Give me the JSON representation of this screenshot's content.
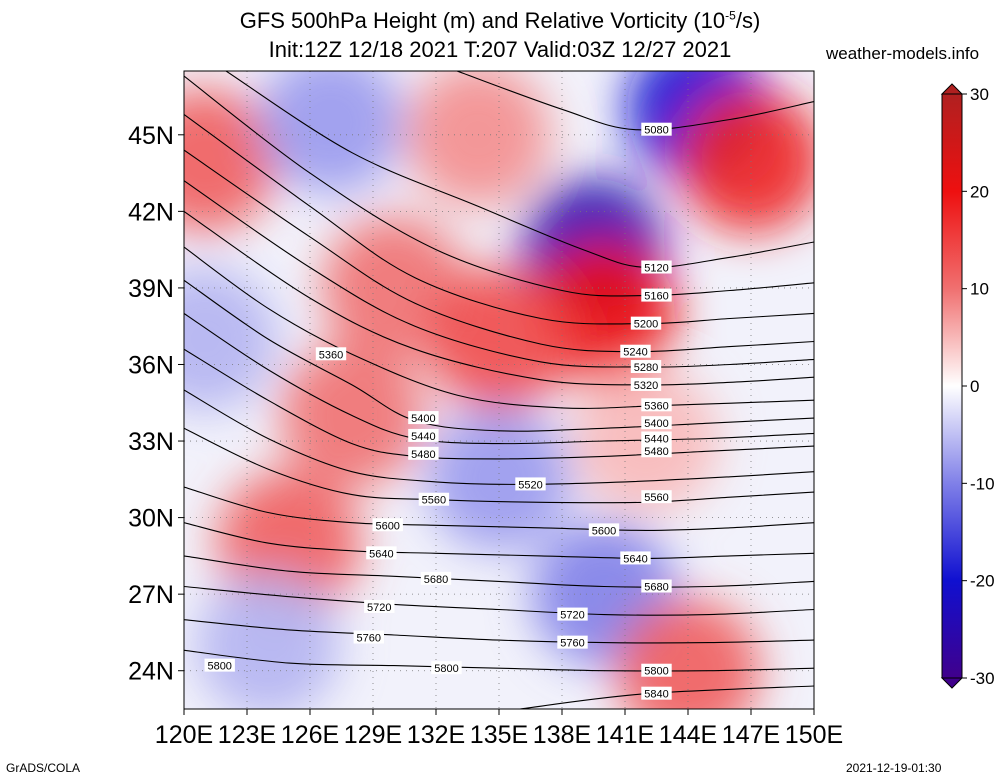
{
  "header": {
    "title_line1_prefix": "GFS 500hPa Height (m) and Relative Vorticity (10",
    "title_line1_exp": "-5",
    "title_line1_suffix": "/s)",
    "title_line2": "Init:12Z 12/18 2021 T:207 Valid:03Z 12/27 2021",
    "brand": "weather-models.info"
  },
  "footer": {
    "left": "GrADS/COLA",
    "right": "2021-12-19-01:30"
  },
  "chart_data": {
    "type": "heatmap",
    "title": "GFS 500hPa Height (m) and Relative Vorticity (10^-5/s)",
    "xlim": [
      120,
      150
    ],
    "ylim": [
      22.5,
      47.5
    ],
    "x_ticks": [
      {
        "value": 120,
        "label": "120E"
      },
      {
        "value": 123,
        "label": "123E"
      },
      {
        "value": 126,
        "label": "126E"
      },
      {
        "value": 129,
        "label": "129E"
      },
      {
        "value": 132,
        "label": "132E"
      },
      {
        "value": 135,
        "label": "135E"
      },
      {
        "value": 138,
        "label": "138E"
      },
      {
        "value": 141,
        "label": "141E"
      },
      {
        "value": 144,
        "label": "144E"
      },
      {
        "value": 147,
        "label": "147E"
      },
      {
        "value": 150,
        "label": "150E"
      }
    ],
    "y_ticks": [
      {
        "value": 24,
        "label": "24N"
      },
      {
        "value": 27,
        "label": "27N"
      },
      {
        "value": 30,
        "label": "30N"
      },
      {
        "value": 33,
        "label": "33N"
      },
      {
        "value": 36,
        "label": "36N"
      },
      {
        "value": 39,
        "label": "39N"
      },
      {
        "value": 42,
        "label": "42N"
      },
      {
        "value": 45,
        "label": "45N"
      }
    ],
    "grid": true,
    "colorbar": {
      "min": -30,
      "max": 30,
      "ticks": [
        {
          "value": 30,
          "label": "30"
        },
        {
          "value": 20,
          "label": "20"
        },
        {
          "value": 10,
          "label": "10"
        },
        {
          "value": 0,
          "label": "0"
        },
        {
          "value": -10,
          "label": "-10"
        },
        {
          "value": -20,
          "label": "-20"
        },
        {
          "value": -30,
          "label": "-30"
        }
      ],
      "stops": [
        {
          "value": 30,
          "color": "#b02020"
        },
        {
          "value": 20,
          "color": "#ee1010"
        },
        {
          "value": 10,
          "color": "#f07070"
        },
        {
          "value": 0,
          "color": "#ffffff"
        },
        {
          "value": -10,
          "color": "#8080e8"
        },
        {
          "value": -20,
          "color": "#1010d0"
        },
        {
          "value": -30,
          "color": "#40008c"
        }
      ]
    },
    "vorticity_regions": [
      {
        "lon": 121,
        "lat": 44,
        "value": 12
      },
      {
        "lon": 127,
        "lat": 45.5,
        "value": -8
      },
      {
        "lon": 134,
        "lat": 45,
        "value": 8
      },
      {
        "lon": 144.5,
        "lat": 46,
        "value": -20
      },
      {
        "lon": 147,
        "lat": 44,
        "value": 18
      },
      {
        "lon": 139.5,
        "lat": 40.5,
        "value": -25
      },
      {
        "lon": 140,
        "lat": 38,
        "value": 20
      },
      {
        "lon": 130,
        "lat": 39,
        "value": 10
      },
      {
        "lon": 135,
        "lat": 37,
        "value": 14
      },
      {
        "lon": 121,
        "lat": 37,
        "value": -6
      },
      {
        "lon": 128,
        "lat": 34,
        "value": 10
      },
      {
        "lon": 142,
        "lat": 33,
        "value": 5
      },
      {
        "lon": 135,
        "lat": 31.5,
        "value": -8
      },
      {
        "lon": 125,
        "lat": 29,
        "value": 12
      },
      {
        "lon": 140,
        "lat": 27,
        "value": -10
      },
      {
        "lon": 124,
        "lat": 25,
        "value": -6
      },
      {
        "lon": 144,
        "lat": 24,
        "value": 12
      }
    ],
    "height_contours": [
      {
        "label": "5080",
        "points": [
          [
            133,
            47.5
          ],
          [
            138,
            46
          ],
          [
            141.5,
            45.2
          ],
          [
            146,
            45.6
          ],
          [
            150,
            46.3
          ]
        ],
        "label_at": [
          142.5,
          45.2
        ]
      },
      {
        "label": "5120",
        "points": [
          [
            122,
            47.5
          ],
          [
            128,
            44.3
          ],
          [
            134,
            42.2
          ],
          [
            139,
            40.5
          ],
          [
            142,
            39.8
          ],
          [
            146,
            40.2
          ],
          [
            150,
            40.8
          ]
        ],
        "label_at": [
          142.5,
          39.8
        ]
      },
      {
        "label": "5160",
        "points": [
          [
            120,
            47.3
          ],
          [
            126,
            43.5
          ],
          [
            132,
            40.5
          ],
          [
            138,
            38.9
          ],
          [
            142,
            38.7
          ],
          [
            146,
            38.9
          ],
          [
            150,
            39.2
          ]
        ],
        "label_at": [
          142.5,
          38.7
        ]
      },
      {
        "label": "5200",
        "points": [
          [
            120,
            45.8
          ],
          [
            126,
            42.2
          ],
          [
            131,
            39.4
          ],
          [
            137,
            37.8
          ],
          [
            142,
            37.6
          ],
          [
            146,
            37.8
          ],
          [
            150,
            38.0
          ]
        ],
        "label_at": [
          142,
          37.6
        ]
      },
      {
        "label": "5240",
        "points": [
          [
            120,
            44.4
          ],
          [
            126,
            41
          ],
          [
            131,
            38.4
          ],
          [
            137,
            36.8
          ],
          [
            141.5,
            36.5
          ],
          [
            146,
            36.7
          ],
          [
            150,
            36.9
          ]
        ],
        "label_at": [
          141.5,
          36.5
        ]
      },
      {
        "label": "5280",
        "points": [
          [
            120,
            43.2
          ],
          [
            126,
            39.8
          ],
          [
            131,
            37.5
          ],
          [
            137,
            36.1
          ],
          [
            142,
            35.9
          ],
          [
            146,
            36.0
          ],
          [
            150,
            36.2
          ]
        ],
        "label_at": [
          142,
          35.9
        ]
      },
      {
        "label": "5320",
        "points": [
          [
            120,
            42
          ],
          [
            126,
            38.6
          ],
          [
            131,
            36.6
          ],
          [
            137,
            35.4
          ],
          [
            142,
            35.2
          ],
          [
            146,
            35.3
          ],
          [
            150,
            35.5
          ]
        ],
        "label_at": [
          142,
          35.2
        ]
      },
      {
        "label": "5360",
        "points": [
          [
            120,
            40.6
          ],
          [
            124,
            38.2
          ],
          [
            128,
            36.4
          ],
          [
            133,
            34.8
          ],
          [
            138,
            34.3
          ],
          [
            143,
            34.4
          ],
          [
            150,
            34.6
          ]
        ],
        "label_at": [
          142.5,
          34.4
        ]
      },
      {
        "label": "5400",
        "points": [
          [
            120,
            39.3
          ],
          [
            124,
            37
          ],
          [
            128,
            35.2
          ],
          [
            131,
            33.8
          ],
          [
            135,
            33.4
          ],
          [
            140,
            33.5
          ],
          [
            145,
            33.7
          ],
          [
            150,
            33.9
          ]
        ],
        "label_at": [
          142.5,
          33.7
        ]
      },
      {
        "label": "5440",
        "points": [
          [
            120,
            38
          ],
          [
            124,
            35.8
          ],
          [
            128,
            34
          ],
          [
            131,
            33.1
          ],
          [
            135,
            32.9
          ],
          [
            140,
            33.0
          ],
          [
            145,
            33.1
          ],
          [
            150,
            33.3
          ]
        ],
        "label_at": [
          142.5,
          33.1
        ]
      },
      {
        "label": "5480",
        "points": [
          [
            120,
            36.6
          ],
          [
            124,
            34.6
          ],
          [
            128,
            32.9
          ],
          [
            131,
            32.4
          ],
          [
            135,
            32.3
          ],
          [
            140,
            32.4
          ],
          [
            145,
            32.6
          ],
          [
            150,
            32.8
          ]
        ],
        "label_at": [
          142.5,
          32.6
        ]
      },
      {
        "label": "5520",
        "points": [
          [
            120,
            35
          ],
          [
            124,
            33.1
          ],
          [
            128,
            31.8
          ],
          [
            132,
            31.4
          ],
          [
            136,
            31.3
          ],
          [
            141,
            31.4
          ],
          [
            146,
            31.6
          ],
          [
            150,
            31.8
          ]
        ],
        "label_at": [
          136.5,
          31.3
        ]
      },
      {
        "label": "5560",
        "points": [
          [
            120,
            33.5
          ],
          [
            124,
            31.9
          ],
          [
            128,
            30.9
          ],
          [
            132,
            30.7
          ],
          [
            137,
            30.6
          ],
          [
            142,
            30.6
          ],
          [
            146,
            30.8
          ],
          [
            150,
            31.0
          ]
        ],
        "label_at": [
          142.5,
          30.8
        ]
      },
      {
        "label": "5600",
        "points": [
          [
            120,
            31.2
          ],
          [
            124,
            30.2
          ],
          [
            128,
            29.8
          ],
          [
            132,
            29.7
          ],
          [
            137,
            29.6
          ],
          [
            142,
            29.5
          ],
          [
            146,
            29.6
          ],
          [
            150,
            29.8
          ]
        ],
        "label_at": [
          140,
          29.5
        ]
      },
      {
        "label": "5640",
        "points": [
          [
            120,
            29.8
          ],
          [
            124,
            29.0
          ],
          [
            128,
            28.7
          ],
          [
            132,
            28.6
          ],
          [
            137,
            28.5
          ],
          [
            142,
            28.4
          ],
          [
            146,
            28.5
          ],
          [
            150,
            28.6
          ]
        ],
        "label_at": [
          141.5,
          28.4
        ]
      },
      {
        "label": "5680",
        "points": [
          [
            120,
            28.5
          ],
          [
            125,
            27.9
          ],
          [
            130,
            27.7
          ],
          [
            135,
            27.5
          ],
          [
            140,
            27.3
          ],
          [
            145,
            27.3
          ],
          [
            150,
            27.5
          ]
        ],
        "label_at": [
          142.5,
          27.3
        ]
      },
      {
        "label": "5720",
        "points": [
          [
            120,
            27.3
          ],
          [
            125,
            26.9
          ],
          [
            130,
            26.6
          ],
          [
            135,
            26.4
          ],
          [
            140,
            26.2
          ],
          [
            145,
            26.2
          ],
          [
            150,
            26.4
          ]
        ],
        "label_at": [
          138.5,
          26.2
        ]
      },
      {
        "label": "5760",
        "points": [
          [
            120,
            26.0
          ],
          [
            125,
            25.6
          ],
          [
            130,
            25.4
          ],
          [
            135,
            25.2
          ],
          [
            140,
            25.1
          ],
          [
            145,
            25.1
          ],
          [
            150,
            25.2
          ]
        ],
        "label_at": [
          138.5,
          25.1
        ]
      },
      {
        "label": "5800",
        "points": [
          [
            120,
            24.8
          ],
          [
            125,
            24.3
          ],
          [
            130,
            24.2
          ],
          [
            135,
            24.1
          ],
          [
            140,
            24.0
          ],
          [
            145,
            24.0
          ],
          [
            150,
            24.1
          ]
        ],
        "label_at": [
          142.5,
          24.0
        ]
      },
      {
        "label": "5840",
        "points": [
          [
            136,
            22.5
          ],
          [
            142,
            23.1
          ],
          [
            150,
            23.4
          ]
        ],
        "label_at": [
          142.5,
          23.1
        ]
      }
    ],
    "extra_contour_labels": [
      {
        "label": "5360",
        "lon": 127,
        "lat": 36.4
      },
      {
        "label": "5400",
        "lon": 131.4,
        "lat": 33.9
      },
      {
        "label": "5440",
        "lon": 131.4,
        "lat": 33.2
      },
      {
        "label": "5480",
        "lon": 131.4,
        "lat": 32.5
      },
      {
        "label": "5560",
        "lon": 131.9,
        "lat": 30.7
      },
      {
        "label": "5600",
        "lon": 129.7,
        "lat": 29.7
      },
      {
        "label": "5640",
        "lon": 129.4,
        "lat": 28.6
      },
      {
        "label": "5680",
        "lon": 132,
        "lat": 27.6
      },
      {
        "label": "5720",
        "lon": 129.3,
        "lat": 26.5
      },
      {
        "label": "5760",
        "lon": 128.8,
        "lat": 25.3
      },
      {
        "label": "5800",
        "lon": 121.7,
        "lat": 24.2
      },
      {
        "label": "5800",
        "lon": 132.5,
        "lat": 24.1
      }
    ]
  }
}
